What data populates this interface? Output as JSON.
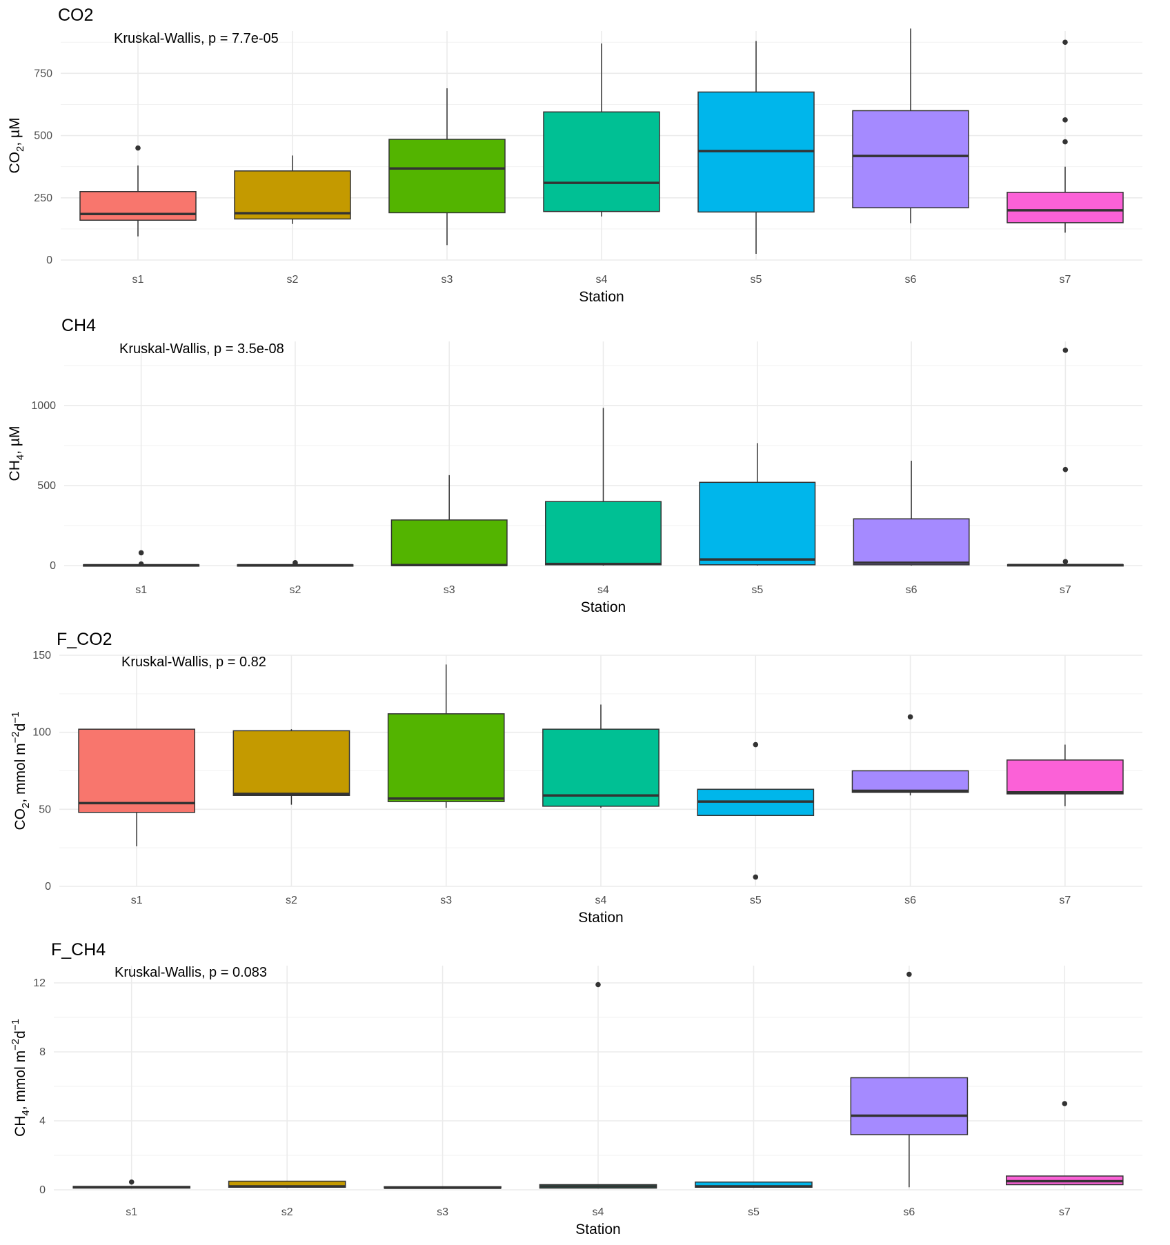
{
  "figure": {
    "colors": {
      "s1": "#F8766D",
      "s2": "#C49A00",
      "s3": "#53B400",
      "s4": "#00C094",
      "s5": "#00B6EB",
      "s6": "#A58AFF",
      "s7": "#FB61D7"
    }
  },
  "chart_data": [
    {
      "type": "box",
      "title": "CO2",
      "annotation": "Kruskal-Wallis, p = 7.7e-05",
      "xlabel": "Station",
      "ylabel": {
        "main": "CO",
        "sub": "2",
        "rest": ", µM"
      },
      "categories": [
        "s1",
        "s2",
        "s3",
        "s4",
        "s5",
        "s6",
        "s7"
      ],
      "ylim": [
        0,
        920
      ],
      "yticks": [
        0,
        250,
        500,
        750
      ],
      "grid": true,
      "legend": "none",
      "boxes": [
        {
          "q1": 160,
          "median": 185,
          "q3": 275,
          "whisker_low": 95,
          "whisker_high": 380,
          "outliers": [
            450
          ]
        },
        {
          "q1": 165,
          "median": 188,
          "q3": 358,
          "whisker_low": 145,
          "whisker_high": 420,
          "outliers": []
        },
        {
          "q1": 190,
          "median": 368,
          "q3": 485,
          "whisker_low": 60,
          "whisker_high": 690,
          "outliers": []
        },
        {
          "q1": 195,
          "median": 310,
          "q3": 595,
          "whisker_low": 175,
          "whisker_high": 870,
          "outliers": []
        },
        {
          "q1": 193,
          "median": 438,
          "q3": 675,
          "whisker_low": 25,
          "whisker_high": 880,
          "outliers": []
        },
        {
          "q1": 210,
          "median": 418,
          "q3": 600,
          "whisker_low": 148,
          "whisker_high": 930,
          "outliers": []
        },
        {
          "q1": 150,
          "median": 200,
          "q3": 272,
          "whisker_low": 110,
          "whisker_high": 375,
          "outliers": [
            475,
            563,
            875
          ]
        }
      ]
    },
    {
      "type": "box",
      "title": "CH4",
      "annotation": "Kruskal-Wallis, p = 3.5e-08",
      "xlabel": "Station",
      "ylabel": {
        "main": "CH",
        "sub": "4",
        "rest": ", µM"
      },
      "categories": [
        "s1",
        "s2",
        "s3",
        "s4",
        "s5",
        "s6",
        "s7"
      ],
      "ylim": [
        0,
        1400
      ],
      "yticks": [
        0,
        500,
        1000
      ],
      "grid": true,
      "legend": "none",
      "boxes": [
        {
          "q1": 0,
          "median": 2,
          "q3": 5,
          "whisker_low": 0,
          "whisker_high": 8,
          "outliers": [
            10,
            80
          ]
        },
        {
          "q1": 0,
          "median": 2,
          "q3": 5,
          "whisker_low": 0,
          "whisker_high": 8,
          "outliers": [
            10,
            18
          ]
        },
        {
          "q1": 0,
          "median": 3,
          "q3": 285,
          "whisker_low": 0,
          "whisker_high": 565,
          "outliers": []
        },
        {
          "q1": 5,
          "median": 10,
          "q3": 400,
          "whisker_low": 0,
          "whisker_high": 985,
          "outliers": []
        },
        {
          "q1": 5,
          "median": 38,
          "q3": 520,
          "whisker_low": 0,
          "whisker_high": 765,
          "outliers": []
        },
        {
          "q1": 5,
          "median": 18,
          "q3": 292,
          "whisker_low": 0,
          "whisker_high": 655,
          "outliers": []
        },
        {
          "q1": 0,
          "median": 3,
          "q3": 6,
          "whisker_low": 0,
          "whisker_high": 9,
          "outliers": [
            25,
            600,
            1345
          ]
        }
      ]
    },
    {
      "type": "box",
      "title": "F_CO2",
      "annotation": "Kruskal-Wallis, p = 0.82",
      "xlabel": "Station",
      "ylabel": {
        "main": "CO",
        "sub": "2",
        "rest": ", mmol m",
        "sup1": "−2",
        "mid": "d",
        "sup2": "−1"
      },
      "categories": [
        "s1",
        "s2",
        "s3",
        "s4",
        "s5",
        "s6",
        "s7"
      ],
      "ylim": [
        0,
        150
      ],
      "yticks": [
        0,
        50,
        100,
        150
      ],
      "grid": true,
      "legend": "none",
      "boxes": [
        {
          "q1": 48,
          "median": 54,
          "q3": 102,
          "whisker_low": 26,
          "whisker_high": 102,
          "outliers": []
        },
        {
          "q1": 59,
          "median": 60,
          "q3": 101,
          "whisker_low": 53,
          "whisker_high": 102,
          "outliers": []
        },
        {
          "q1": 55,
          "median": 57,
          "q3": 112,
          "whisker_low": 51,
          "whisker_high": 144,
          "outliers": []
        },
        {
          "q1": 52,
          "median": 59,
          "q3": 102,
          "whisker_low": 51,
          "whisker_high": 118,
          "outliers": []
        },
        {
          "q1": 46,
          "median": 55,
          "q3": 63,
          "whisker_low": 46,
          "whisker_high": 63,
          "outliers": [
            6,
            92
          ]
        },
        {
          "q1": 61,
          "median": 62,
          "q3": 75,
          "whisker_low": 59,
          "whisker_high": 75,
          "outliers": [
            110
          ]
        },
        {
          "q1": 60,
          "median": 61,
          "q3": 82,
          "whisker_low": 52,
          "whisker_high": 92,
          "outliers": []
        }
      ]
    },
    {
      "type": "box",
      "title": "F_CH4",
      "annotation": "Kruskal-Wallis, p = 0.083",
      "xlabel": "Station",
      "ylabel": {
        "main": "CH",
        "sub": "4",
        "rest": ", mmol m",
        "sup1": "−2",
        "mid": "d",
        "sup2": "−1"
      },
      "categories": [
        "s1",
        "s2",
        "s3",
        "s4",
        "s5",
        "s6",
        "s7"
      ],
      "ylim": [
        0,
        13
      ],
      "yticks": [
        0,
        4,
        8,
        12
      ],
      "grid": true,
      "legend": "none",
      "boxes": [
        {
          "q1": 0.1,
          "median": 0.15,
          "q3": 0.2,
          "whisker_low": 0.1,
          "whisker_high": 0.22,
          "outliers": [
            0.45
          ]
        },
        {
          "q1": 0.15,
          "median": 0.2,
          "q3": 0.5,
          "whisker_low": 0.15,
          "whisker_high": 0.5,
          "outliers": []
        },
        {
          "q1": 0.1,
          "median": 0.12,
          "q3": 0.18,
          "whisker_low": 0.1,
          "whisker_high": 0.18,
          "outliers": []
        },
        {
          "q1": 0.1,
          "median": 0.2,
          "q3": 0.3,
          "whisker_low": 0.1,
          "whisker_high": 0.3,
          "outliers": [
            11.9
          ]
        },
        {
          "q1": 0.15,
          "median": 0.2,
          "q3": 0.45,
          "whisker_low": 0.15,
          "whisker_high": 0.45,
          "outliers": []
        },
        {
          "q1": 3.2,
          "median": 4.3,
          "q3": 6.5,
          "whisker_low": 0.15,
          "whisker_high": 6.5,
          "outliers": [
            12.5
          ]
        },
        {
          "q1": 0.3,
          "median": 0.5,
          "q3": 0.8,
          "whisker_low": 0.3,
          "whisker_high": 0.8,
          "outliers": [
            5.0
          ]
        }
      ]
    }
  ]
}
